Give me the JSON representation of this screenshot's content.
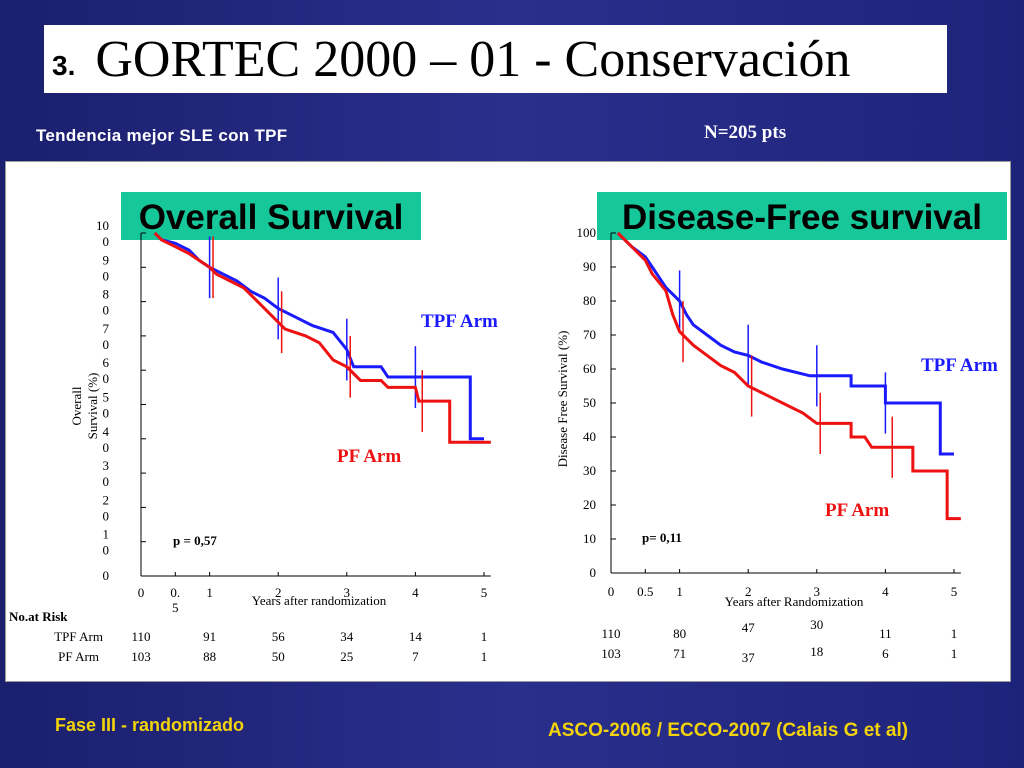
{
  "slide": {
    "number": "3.",
    "title": "GORTEC 2000 – 01 - Conservación",
    "subtitle": "Tendencia mejor  SLE con TPF",
    "n_patients": "N=205 pts",
    "footer_left": "Fase III - randomizado",
    "footer_right": "ASCO-2006 / ECCO-2007 (Calais G et al)"
  },
  "colors": {
    "tpf": "#1a1aff",
    "pf": "#ee1111",
    "heading_bg": "#16c79a",
    "background": "#222880",
    "footer_text": "#f2d20a"
  },
  "chart_data": [
    {
      "type": "line",
      "title": "Overall Survival",
      "xlabel": "Years after randomization",
      "ylabel_lines": [
        "Overall",
        "Survival (%)"
      ],
      "xlim": [
        0,
        5.1
      ],
      "ylim": [
        0,
        100
      ],
      "x_ticks": [
        0,
        0.5,
        1,
        2,
        3,
        4,
        5
      ],
      "x_tick_labels": [
        "0",
        "0.\n5",
        "1",
        "2",
        "3",
        "4",
        "5"
      ],
      "y_ticks": [
        0,
        10,
        20,
        30,
        40,
        50,
        60,
        70,
        80,
        90,
        100
      ],
      "y_tick_labels": [
        "0",
        "1\n0",
        "2\n0",
        "3\n0",
        "4\n0",
        "5\n0",
        "6\n0",
        "7\n0",
        "8\n0",
        "9\n0",
        "10\n0"
      ],
      "p_value": "p = 0,57",
      "risk_title": "No.at Risk",
      "risk_x": [
        0,
        1,
        2,
        3,
        4,
        5
      ],
      "series": [
        {
          "name": "TPF Arm",
          "color_key": "tpf",
          "points": [
            [
              0.2,
              100
            ],
            [
              0.3,
              98
            ],
            [
              0.5,
              97
            ],
            [
              0.7,
              95
            ],
            [
              0.85,
              92
            ],
            [
              1.0,
              90
            ],
            [
              1.2,
              88
            ],
            [
              1.4,
              86
            ],
            [
              1.6,
              83
            ],
            [
              1.8,
              81
            ],
            [
              2.0,
              78
            ],
            [
              2.2,
              76
            ],
            [
              2.5,
              73
            ],
            [
              2.8,
              71
            ],
            [
              3.0,
              66
            ],
            [
              3.1,
              61
            ],
            [
              3.5,
              61
            ],
            [
              3.6,
              58
            ],
            [
              4.0,
              58
            ],
            [
              4.8,
              58
            ],
            [
              4.8,
              40
            ],
            [
              5.0,
              40
            ]
          ],
          "censor_x": [
            1.0,
            2.0,
            3.0,
            4.0
          ],
          "risk_label": "TPF Arm",
          "at_risk": [
            "110",
            "91",
            "56",
            "34",
            "14",
            "1"
          ]
        },
        {
          "name": "PF Arm",
          "color_key": "pf",
          "points": [
            [
              0.2,
              100
            ],
            [
              0.3,
              98
            ],
            [
              0.5,
              96
            ],
            [
              0.7,
              94
            ],
            [
              0.85,
              92
            ],
            [
              1.0,
              90
            ],
            [
              1.1,
              88
            ],
            [
              1.3,
              86
            ],
            [
              1.5,
              84
            ],
            [
              1.7,
              80
            ],
            [
              1.9,
              76
            ],
            [
              2.0,
              74
            ],
            [
              2.1,
              72
            ],
            [
              2.4,
              70
            ],
            [
              2.6,
              68
            ],
            [
              2.8,
              63
            ],
            [
              3.0,
              61
            ],
            [
              3.2,
              57
            ],
            [
              3.5,
              57
            ],
            [
              3.6,
              55
            ],
            [
              4.0,
              55
            ],
            [
              4.05,
              51
            ],
            [
              4.5,
              51
            ],
            [
              4.5,
              39
            ],
            [
              5.1,
              39
            ]
          ],
          "censor_x": [
            1.05,
            2.05,
            3.05,
            4.1
          ],
          "risk_label": "PF Arm",
          "at_risk": [
            "103",
            "88",
            "50",
            "25",
            "7",
            "1"
          ]
        }
      ]
    },
    {
      "type": "line",
      "title": "Disease-Free survival",
      "xlabel": "Years after Randomization",
      "ylabel": "Disease Free Survival (%)",
      "xlim": [
        0,
        5.1
      ],
      "ylim": [
        0,
        100
      ],
      "x_ticks": [
        0,
        0.5,
        1,
        2,
        3,
        4,
        5
      ],
      "x_tick_labels": [
        "0",
        "0.5",
        "1",
        "2",
        "3",
        "4",
        "5"
      ],
      "y_ticks": [
        0,
        10,
        20,
        30,
        40,
        50,
        60,
        70,
        80,
        90,
        100
      ],
      "y_tick_labels": [
        "0",
        "10",
        "20",
        "30",
        "40",
        "50",
        "60",
        "70",
        "80",
        "90",
        "100"
      ],
      "p_value": "p= 0,11",
      "series": [
        {
          "name": "TPF Arm",
          "color_key": "tpf",
          "points": [
            [
              0.1,
              100
            ],
            [
              0.2,
              98
            ],
            [
              0.3,
              96
            ],
            [
              0.5,
              93
            ],
            [
              0.6,
              90
            ],
            [
              0.7,
              87
            ],
            [
              0.8,
              84
            ],
            [
              1.0,
              80
            ],
            [
              1.1,
              76
            ],
            [
              1.2,
              73
            ],
            [
              1.4,
              70
            ],
            [
              1.6,
              67
            ],
            [
              1.8,
              65
            ],
            [
              2.0,
              64
            ],
            [
              2.2,
              62
            ],
            [
              2.5,
              60
            ],
            [
              2.9,
              58
            ],
            [
              3.5,
              58
            ],
            [
              3.5,
              55
            ],
            [
              4.0,
              55
            ],
            [
              4.0,
              50
            ],
            [
              4.8,
              50
            ],
            [
              4.8,
              35
            ],
            [
              5.0,
              35
            ]
          ],
          "censor_x": [
            1.0,
            2.0,
            3.0,
            4.0
          ],
          "at_risk": [
            "110",
            "80",
            "47",
            "30",
            "11",
            "1"
          ]
        },
        {
          "name": "PF Arm",
          "color_key": "pf",
          "points": [
            [
              0.1,
              100
            ],
            [
              0.2,
              98
            ],
            [
              0.3,
              96
            ],
            [
              0.5,
              92
            ],
            [
              0.6,
              88
            ],
            [
              0.8,
              83
            ],
            [
              0.9,
              76
            ],
            [
              1.0,
              71
            ],
            [
              1.2,
              67
            ],
            [
              1.4,
              64
            ],
            [
              1.6,
              61
            ],
            [
              1.8,
              59
            ],
            [
              2.0,
              55
            ],
            [
              2.3,
              52
            ],
            [
              2.5,
              50
            ],
            [
              2.8,
              47
            ],
            [
              3.0,
              44
            ],
            [
              3.5,
              44
            ],
            [
              3.5,
              40
            ],
            [
              3.7,
              40
            ],
            [
              3.8,
              37
            ],
            [
              4.4,
              37
            ],
            [
              4.4,
              30
            ],
            [
              4.9,
              30
            ],
            [
              4.9,
              16
            ],
            [
              5.1,
              16
            ]
          ],
          "censor_x": [
            1.05,
            2.05,
            3.05,
            4.1
          ],
          "at_risk": [
            "103",
            "71",
            "37",
            "18",
            "6",
            "1"
          ]
        }
      ]
    }
  ],
  "os_labels": {
    "tpf": "TPF Arm",
    "pf": "PF Arm"
  },
  "dfs_labels": {
    "tpf": "TPF Arm",
    "pf": "PF Arm"
  }
}
